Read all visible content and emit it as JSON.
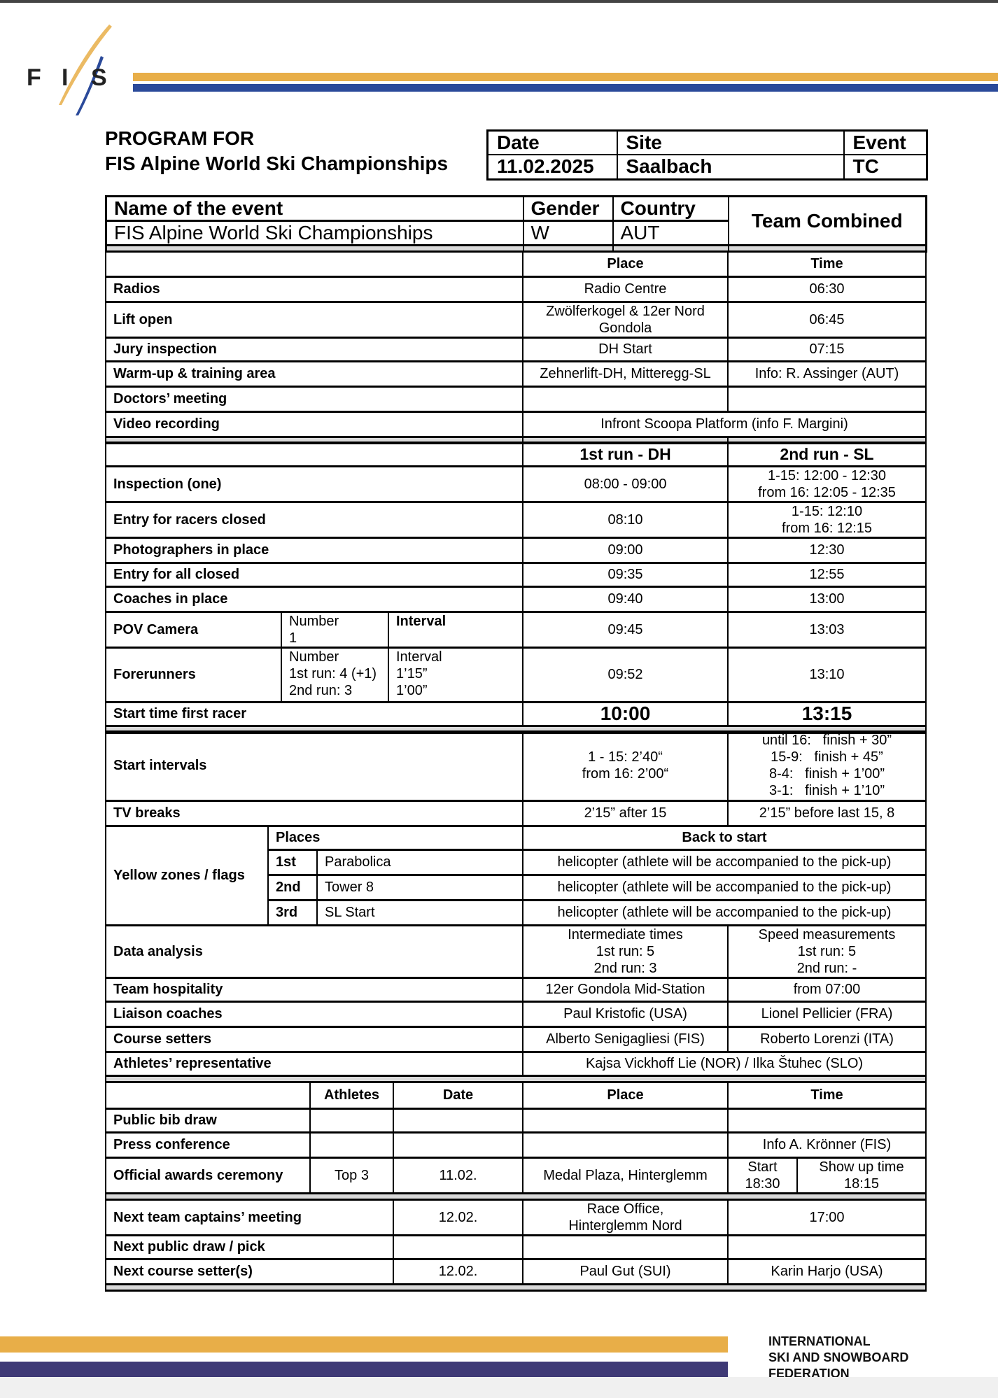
{
  "brand": {
    "logo_text": "FIS",
    "footer_lines": [
      "INTERNATIONAL",
      "SKI AND SNOWBOARD",
      "FEDERATION"
    ],
    "colors": {
      "orange": "#E8AE48",
      "blue": "#2B4A9A",
      "purple": "#3F3A76",
      "grey": "#D9D9D9"
    }
  },
  "title": {
    "line1": "PROGRAM FOR",
    "line2": "FIS Alpine World Ski Championships"
  },
  "header": {
    "date_label": "Date",
    "site_label": "Site",
    "event_label": "Event",
    "date": "11.02.2025",
    "site": "Saalbach",
    "event": "TC"
  },
  "event": {
    "name_label": "Name of the event",
    "gender_label": "Gender",
    "country_label": "Country",
    "name": "FIS Alpine World Ski Championships",
    "gender": "W",
    "country": "AUT",
    "discipline": "Team Combined"
  },
  "general": {
    "place_label": "Place",
    "time_label": "Time",
    "rows": [
      {
        "label": "Radios",
        "place": "Radio Centre",
        "time": "06:30"
      },
      {
        "label": "Lift open",
        "place": "Zwölferkogel & 12er Nord Gondola",
        "time": "06:45"
      },
      {
        "label": "Jury inspection",
        "place": "DH Start",
        "time": "07:15"
      },
      {
        "label": "Warm-up & training area",
        "place": "Zehnerlift-DH, Mitteregg-SL",
        "time": "Info: R. Assinger (AUT)"
      },
      {
        "label": "Doctors’ meeting",
        "place": "",
        "time": ""
      },
      {
        "label": "Video recording",
        "place": "Infront Scoopa Platform (info F. Margini)"
      }
    ]
  },
  "runs": {
    "run1_label": "1st run - DH",
    "run2_label": "2nd run - SL",
    "rows": [
      {
        "label": "Inspection (one)",
        "run1": "08:00 - 09:00",
        "run2a": "1-15: 12:00 - 12:30",
        "run2b": "from 16: 12:05 - 12:35"
      },
      {
        "label": "Entry for racers closed",
        "run1": "08:10",
        "run2a": "1-15: 12:10",
        "run2b": "from 16: 12:15"
      },
      {
        "label": "Photographers in place",
        "run1": "09:00",
        "run2": "12:30"
      },
      {
        "label": "Entry for all closed",
        "run1": "09:35",
        "run2": "12:55"
      },
      {
        "label": "Coaches in place",
        "run1": "09:40",
        "run2": "13:00"
      }
    ],
    "pov": {
      "label": "POV Camera",
      "number_label": "Number",
      "number": "1",
      "interval_label": "Interval",
      "run1": "09:45",
      "run2": "13:03"
    },
    "forerunners": {
      "label": "Forerunners",
      "number_label": "Number",
      "number1": "1st run: 4 (+1)",
      "number2": "2nd run: 3",
      "interval_label": "Interval",
      "interval1": "1’15”",
      "interval2": "1’00”",
      "run1": "09:52",
      "run2": "13:10"
    },
    "start": {
      "label": "Start time first racer",
      "run1": "10:00",
      "run2": "13:15"
    }
  },
  "intervals": {
    "label": "Start intervals",
    "run1": [
      "1 - 15: 2’40“",
      "from 16: 2’00“"
    ],
    "run2": [
      "until 16:   finish + 30”",
      "15-9:   finish + 45”",
      "8-4:   finish + 1’00”",
      "3-1:   finish + 1’10”"
    ]
  },
  "tv": {
    "label": "TV breaks",
    "run1": "2’15” after 15",
    "run2": "2’15” before last 15, 8"
  },
  "yellow": {
    "label": "Yellow zones / flags",
    "places_label": "Places",
    "back_label": "Back to start",
    "rows": [
      {
        "n": "1st",
        "place": "Parabolica",
        "back": "helicopter (athlete will be accompanied to the pick-up)"
      },
      {
        "n": "2nd",
        "place": "Tower 8",
        "back": "helicopter (athlete will be accompanied to the pick-up)"
      },
      {
        "n": "3rd",
        "place": "SL Start",
        "back": "helicopter (athlete will be accompanied to the pick-up)"
      }
    ]
  },
  "analysis": {
    "label": "Data analysis",
    "int_label": "Intermediate times",
    "int1": "1st run: 5",
    "int2": "2nd run: 3",
    "speed_label": "Speed measurements",
    "speed1": "1st run: 5",
    "speed2": "2nd run: -"
  },
  "people": [
    {
      "label": "Team hospitality",
      "a": "12er Gondola Mid-Station",
      "b": "from 07:00"
    },
    {
      "label": "Liaison coaches",
      "a": "Paul Kristofic (USA)",
      "b": "Lionel Pellicier (FRA)"
    },
    {
      "label": "Course setters",
      "a": "Alberto Senigagliesi (FIS)",
      "b": "Roberto Lorenzi (ITA)"
    },
    {
      "label": "Athletes’ representative",
      "ab": "Kajsa Vickhoff Lie (NOR) / Ilka Štuhec (SLO)"
    }
  ],
  "ceremonies": {
    "athletes_label": "Athletes",
    "date_label": "Date",
    "place_label": "Place",
    "time_label": "Time",
    "bib": {
      "label": "Public bib draw"
    },
    "press": {
      "label": "Press conference",
      "time": "Info A. Krönner (FIS)"
    },
    "awards": {
      "label": "Official awards ceremony",
      "athletes": "Top 3",
      "date": "11.02.",
      "place": "Medal Plaza, Hinterglemm",
      "start_label": "Start",
      "start": "18:30",
      "showup_label": "Show up time",
      "showup": "18:15"
    },
    "captains": {
      "label": "Next team captains’ meeting",
      "date": "12.02.",
      "place1": "Race Office,",
      "place2": "Hinterglemm Nord",
      "time": "17:00"
    },
    "draw": {
      "label": "Next public draw / pick"
    },
    "setters": {
      "label": "Next course setter(s)",
      "date": "12.02.",
      "place": "Paul Gut (SUI)",
      "time": "Karin Harjo (USA)"
    }
  }
}
